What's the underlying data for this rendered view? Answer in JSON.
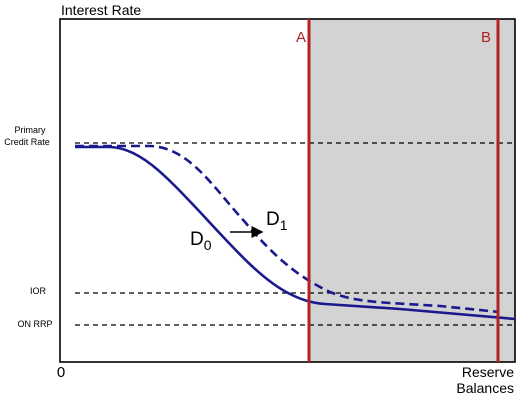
{
  "diagram": {
    "y_axis_label": "Interest Rate",
    "x_axis_label_line1": "Reserve",
    "x_axis_label_line2": "Balances",
    "origin_label": "0",
    "rates": {
      "primary_credit_line1": "Primary",
      "primary_credit_line2": "Credit Rate",
      "ior": "IOR",
      "on_rrp": "ON RRP"
    },
    "curves": {
      "d0_main": "D",
      "d0_sub": "0",
      "d1_main": "D",
      "d1_sub": "1"
    },
    "markers": {
      "a": "A",
      "b": "B"
    },
    "colors": {
      "axis": "#000000",
      "curve": "#1a1a8c",
      "marker_line": "#b22222",
      "shade": "#d3d3d3",
      "rate_line": "#000000"
    }
  }
}
